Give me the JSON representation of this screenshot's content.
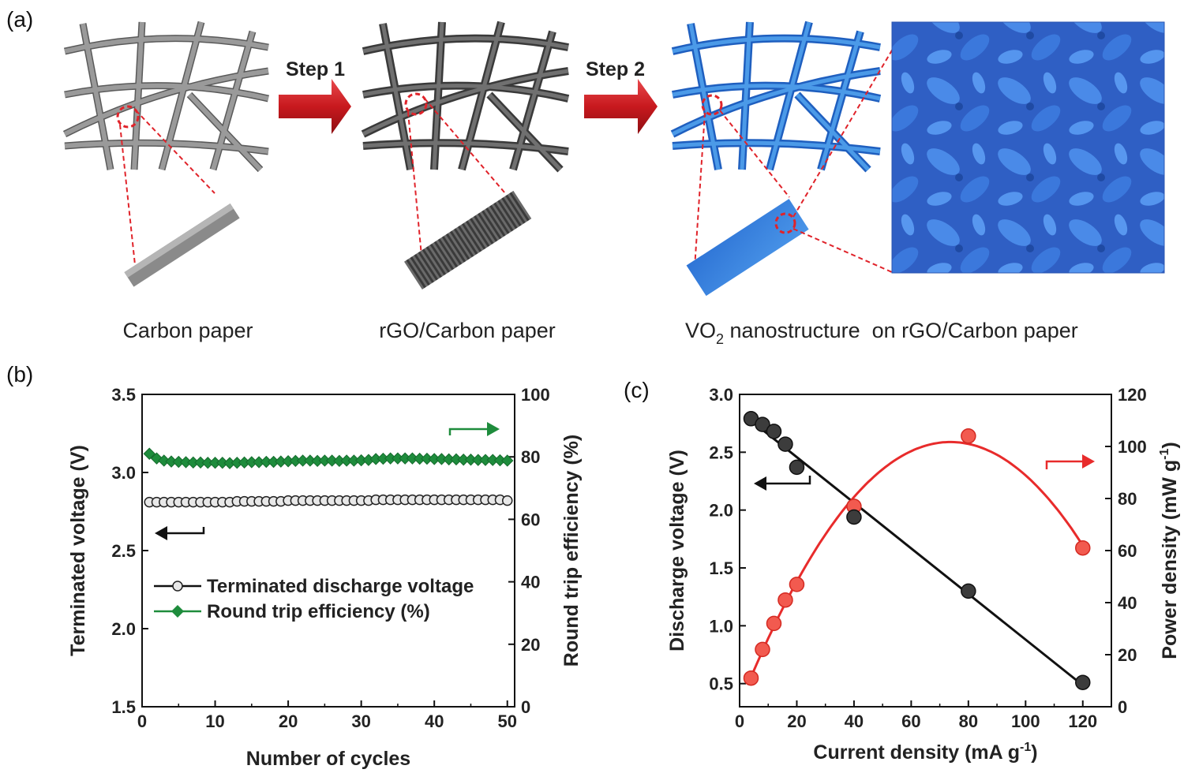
{
  "panel_a": {
    "label": "(a)",
    "step1": "Step 1",
    "step2": "Step 2",
    "caption1": "Carbon paper",
    "caption2": "rGO/Carbon paper",
    "caption3_pre": "VO",
    "caption3_sub": "2",
    "caption3_post": " nanostructure  on rGO/Carbon paper",
    "colors": {
      "carbon": "#7d7d7d",
      "rgo": "#555555",
      "vo2": "#3d86dc",
      "arrow": "#c8191e",
      "dash": "#e0232a"
    }
  },
  "panel_b": {
    "label": "(b)",
    "xlabel": "Number of cycles",
    "ylabel_left": "Terminated voltage (V)",
    "ylabel_right": "Round trip efficiency (%)",
    "xticks": [
      "0",
      "10",
      "20",
      "30",
      "40",
      "50"
    ],
    "yticks_left": [
      "1.5",
      "2.0",
      "2.5",
      "3.0",
      "3.5"
    ],
    "yticks_right": [
      "0",
      "20",
      "40",
      "60",
      "80",
      "100"
    ],
    "legend": [
      "Terminated discharge voltage",
      "Round trip efficiency (%)"
    ]
  },
  "panel_c": {
    "label": "(c)",
    "xlabel_pre": "Current density (mA g",
    "xlabel_sup": "-1",
    "xlabel_post": ")",
    "ylabel_left": "Discharge voltage (V)",
    "ylabel_right_pre": "Power density (mW g",
    "ylabel_right_sup": "-1",
    "ylabel_right_post": ")",
    "xticks": [
      "0",
      "20",
      "40",
      "60",
      "80",
      "100",
      "120"
    ],
    "yticks_left": [
      "0.5",
      "1.0",
      "1.5",
      "2.0",
      "2.5",
      "3.0"
    ],
    "yticks_right": [
      "0",
      "20",
      "40",
      "60",
      "80",
      "100",
      "120"
    ]
  },
  "chart_data": [
    {
      "type": "line",
      "panel": "b",
      "x_range": [
        0,
        51
      ],
      "y_left_range": [
        1.5,
        3.5
      ],
      "y_right_range": [
        0,
        100
      ],
      "series": [
        {
          "name": "Terminated discharge voltage",
          "axis": "left",
          "color": "#111111",
          "marker": "circle",
          "x": [
            1,
            2,
            3,
            4,
            5,
            6,
            7,
            8,
            9,
            10,
            11,
            12,
            13,
            14,
            15,
            16,
            17,
            18,
            19,
            20,
            21,
            22,
            23,
            24,
            25,
            26,
            27,
            28,
            29,
            30,
            31,
            32,
            33,
            34,
            35,
            36,
            37,
            38,
            39,
            40,
            41,
            42,
            43,
            44,
            45,
            46,
            47,
            48,
            49,
            50
          ],
          "y": [
            2.81,
            2.81,
            2.81,
            2.81,
            2.81,
            2.81,
            2.81,
            2.81,
            2.81,
            2.81,
            2.81,
            2.81,
            2.815,
            2.815,
            2.815,
            2.815,
            2.815,
            2.815,
            2.815,
            2.82,
            2.82,
            2.82,
            2.82,
            2.82,
            2.82,
            2.82,
            2.82,
            2.82,
            2.82,
            2.82,
            2.82,
            2.825,
            2.825,
            2.825,
            2.825,
            2.825,
            2.825,
            2.825,
            2.825,
            2.825,
            2.825,
            2.825,
            2.825,
            2.825,
            2.825,
            2.825,
            2.825,
            2.825,
            2.825,
            2.82
          ]
        },
        {
          "name": "Round trip efficiency (%)",
          "axis": "right",
          "color": "#1e8c3c",
          "marker": "diamond",
          "x": [
            1,
            2,
            3,
            4,
            5,
            6,
            7,
            8,
            9,
            10,
            11,
            12,
            13,
            14,
            15,
            16,
            17,
            18,
            19,
            20,
            21,
            22,
            23,
            24,
            25,
            26,
            27,
            28,
            29,
            30,
            31,
            32,
            33,
            34,
            35,
            36,
            37,
            38,
            39,
            40,
            41,
            42,
            43,
            44,
            45,
            46,
            47,
            48,
            49,
            50
          ],
          "y": [
            81.0,
            79.5,
            78.8,
            78.5,
            78.4,
            78.3,
            78.2,
            78.2,
            78.1,
            78.1,
            78.1,
            78.0,
            78.1,
            78.2,
            78.3,
            78.3,
            78.4,
            78.4,
            78.5,
            78.6,
            78.7,
            78.8,
            78.8,
            78.7,
            78.8,
            78.8,
            78.7,
            78.8,
            78.8,
            78.9,
            79.0,
            79.3,
            79.4,
            79.5,
            79.5,
            79.5,
            79.5,
            79.4,
            79.4,
            79.3,
            79.3,
            79.2,
            79.2,
            79.1,
            79.1,
            79.0,
            79.0,
            79.0,
            78.9,
            78.8
          ]
        }
      ]
    },
    {
      "type": "scatter",
      "panel": "c",
      "x_range": [
        0,
        130
      ],
      "y_left_range": [
        0.3,
        3.0
      ],
      "y_right_range": [
        0,
        120
      ],
      "series": [
        {
          "name": "",
          "axis": "left",
          "color": "#111111",
          "marker": "circle",
          "fit": "linear",
          "x": [
            4,
            8,
            12,
            16,
            20,
            40,
            80,
            120
          ],
          "y": [
            2.79,
            2.74,
            2.68,
            2.57,
            2.37,
            1.94,
            1.3,
            0.51
          ]
        },
        {
          "name": "",
          "axis": "right",
          "color": "#e82b2b",
          "marker": "circle",
          "fit": "curve",
          "x": [
            4,
            8,
            12,
            16,
            20,
            40,
            80,
            120
          ],
          "y": [
            11,
            22,
            32,
            41,
            47,
            77,
            104,
            61
          ]
        }
      ]
    }
  ]
}
